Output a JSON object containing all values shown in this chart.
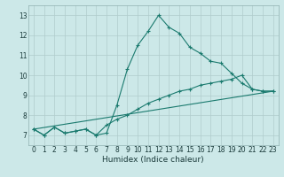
{
  "xlabel": "Humidex (Indice chaleur)",
  "bg_color": "#cce8e8",
  "grid_color": "#b0cccc",
  "line_color": "#1a7a6e",
  "xlim": [
    -0.5,
    23.5
  ],
  "ylim": [
    6.5,
    13.5
  ],
  "xticks": [
    0,
    1,
    2,
    3,
    4,
    5,
    6,
    7,
    8,
    9,
    10,
    11,
    12,
    13,
    14,
    15,
    16,
    17,
    18,
    19,
    20,
    21,
    22,
    23
  ],
  "yticks": [
    7,
    8,
    9,
    10,
    11,
    12,
    13
  ],
  "lines": [
    {
      "x": [
        0,
        1,
        2,
        3,
        4,
        5,
        6,
        7,
        8,
        9,
        10,
        11,
        12,
        13,
        14,
        15,
        16,
        17,
        18,
        19,
        20,
        21,
        22,
        23
      ],
      "y": [
        7.3,
        7.0,
        7.4,
        7.1,
        7.2,
        7.3,
        7.0,
        7.1,
        8.5,
        10.3,
        11.5,
        12.2,
        13.0,
        12.4,
        12.1,
        11.4,
        11.1,
        10.7,
        10.6,
        10.1,
        9.6,
        9.3,
        9.2,
        9.2
      ],
      "marker": true
    },
    {
      "x": [
        0,
        1,
        2,
        3,
        4,
        5,
        6,
        7,
        8,
        9,
        10,
        11,
        12,
        13,
        14,
        15,
        16,
        17,
        18,
        19,
        20,
        21,
        22,
        23
      ],
      "y": [
        7.3,
        7.0,
        7.4,
        7.1,
        7.2,
        7.3,
        7.0,
        7.5,
        7.8,
        8.0,
        8.3,
        8.6,
        8.8,
        9.0,
        9.2,
        9.3,
        9.5,
        9.6,
        9.7,
        9.8,
        10.0,
        9.3,
        9.2,
        9.2
      ],
      "marker": true
    },
    {
      "x": [
        0,
        23
      ],
      "y": [
        7.3,
        9.2
      ],
      "marker": false
    }
  ]
}
